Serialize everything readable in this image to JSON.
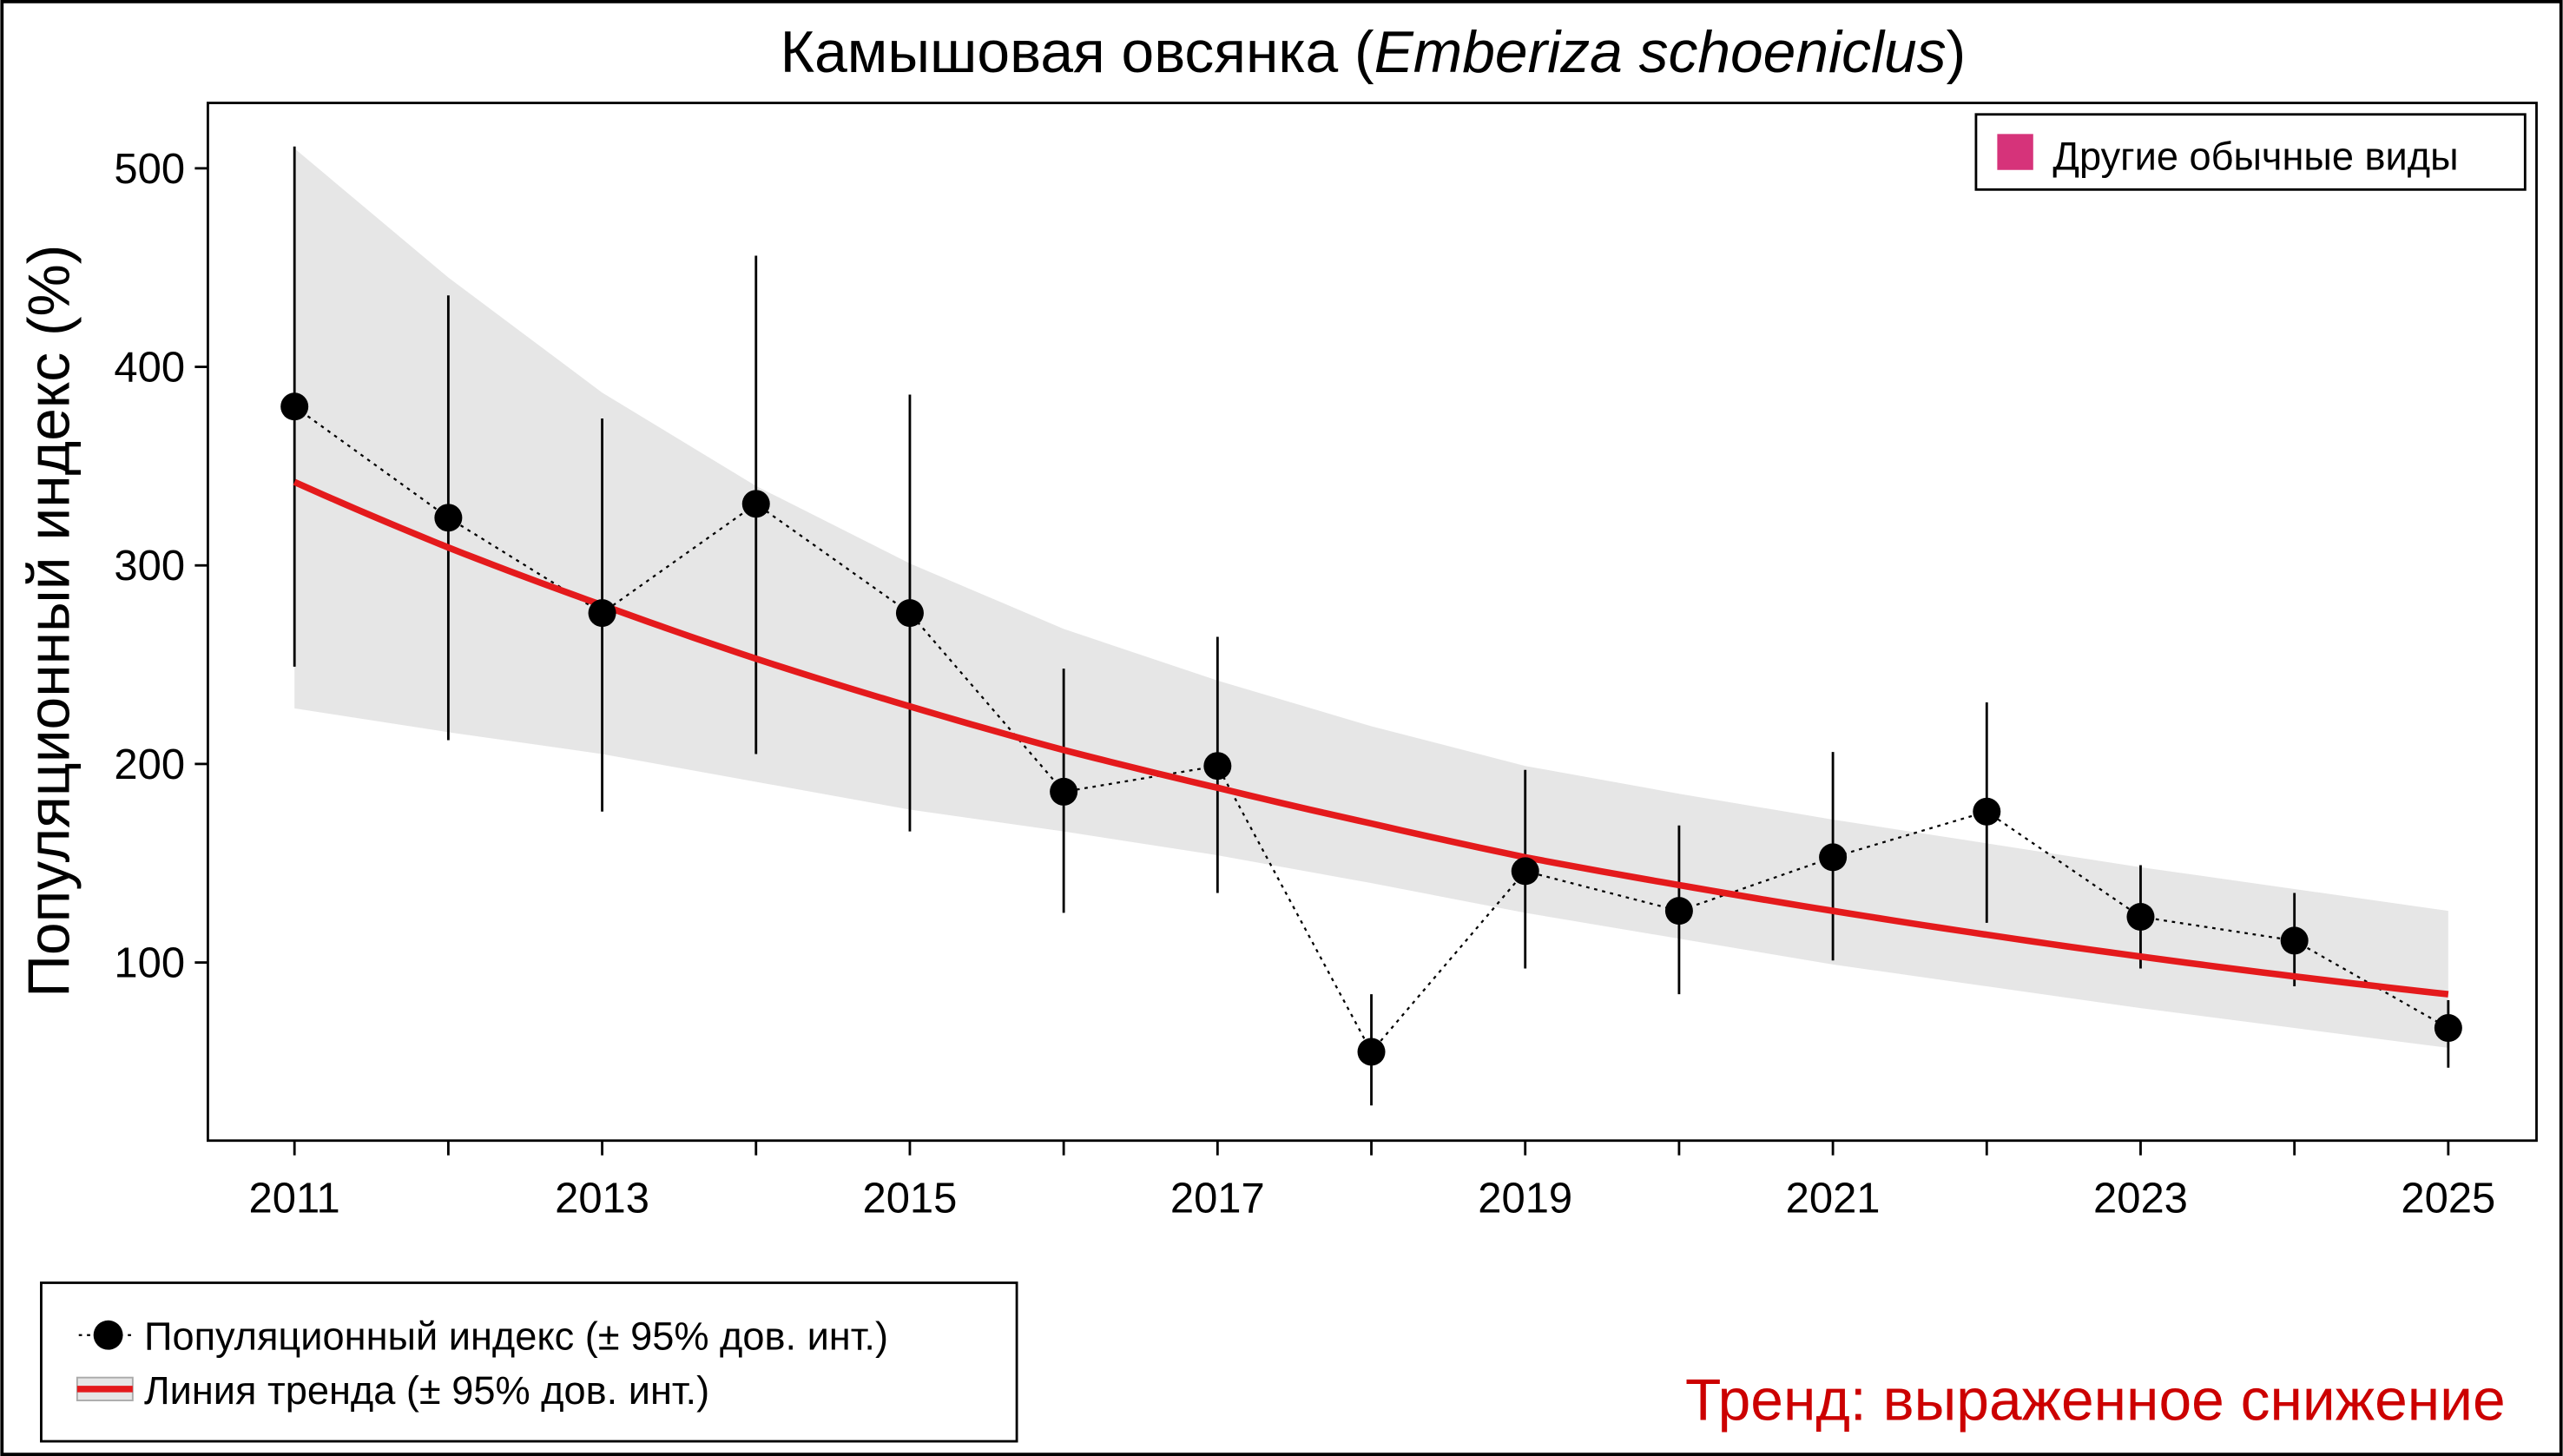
{
  "chart_data": {
    "type": "line",
    "title": "Камышовая овсянка (",
    "title_species": "Emberiza schoeniclus",
    "title_close": ")",
    "xlabel": "",
    "ylabel": "Популяционный индекс (%)",
    "xlim": [
      2011,
      2025
    ],
    "ylim": [
      10,
      530
    ],
    "yticks": [
      100,
      200,
      300,
      400,
      500
    ],
    "xtick_labels": [
      "2011",
      "2013",
      "2015",
      "2017",
      "2019",
      "2021",
      "2023",
      "2025"
    ],
    "grid": false,
    "x": [
      2011,
      2012,
      2013,
      2014,
      2015,
      2016,
      2017,
      2018,
      2019,
      2020,
      2021,
      2022,
      2023,
      2024,
      2025
    ],
    "series": [
      {
        "name": "Популяционный индекс (± 95% дов. инт.)",
        "values": [
          380,
          324,
          276,
          331,
          276,
          186,
          199,
          55,
          146,
          126,
          153,
          176,
          123,
          111,
          67
        ],
        "ci_upper": [
          511,
          436,
          374,
          456,
          386,
          248,
          264,
          84,
          197,
          169,
          206,
          231,
          149,
          135,
          81
        ],
        "ci_lower": [
          249,
          212,
          176,
          205,
          166,
          125,
          135,
          28,
          97,
          84,
          101,
          120,
          97,
          88,
          47
        ],
        "color": "#000000"
      },
      {
        "name": "Линия тренда (± 95% дов. инт.)",
        "values": [
          342,
          309,
          280,
          253,
          229,
          207,
          188,
          170,
          153,
          139,
          126,
          114,
          103,
          93,
          84
        ],
        "ci_upper": [
          510,
          445,
          387,
          340,
          301,
          268,
          242,
          219,
          199,
          185,
          172,
          160,
          148,
          137,
          126
        ],
        "ci_lower": [
          228,
          216,
          205,
          191,
          177,
          166,
          154,
          140,
          125,
          112,
          99,
          88,
          77,
          67,
          57
        ],
        "color": "#e41a1c",
        "band_color": "#e6e6e6"
      }
    ],
    "legend_top_right": {
      "label": "Другие обычные виды",
      "color": "#d6337a"
    },
    "legend_bottom_left": [
      "Популяционный индекс (± 95% дов. инт.)",
      "Линия тренда (± 95% дов. инт.)"
    ],
    "trend_text": "Тренд: выраженное снижение",
    "trend_color": "#cc0000"
  }
}
